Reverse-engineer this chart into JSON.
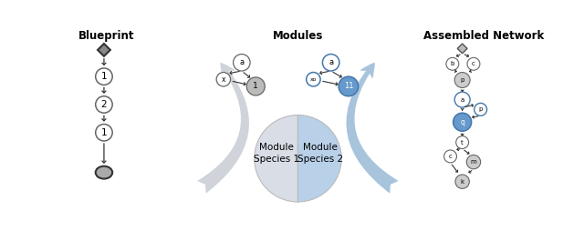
{
  "title_blueprint": "Blueprint",
  "title_modules": "Modules",
  "title_assembled": "Assembled Network",
  "bg_color": "#ffffff",
  "node_white": "#ffffff",
  "node_gray_light": "#cccccc",
  "node_gray_dark": "#aaaaaa",
  "node_blue": "#6699cc",
  "arrow_color": "#333333",
  "pie_left_color": "#d8dde6",
  "pie_right_color": "#b8d0e8",
  "left_arrow_color": "#d0d4da",
  "right_arrow_color": "#a8c4dc"
}
